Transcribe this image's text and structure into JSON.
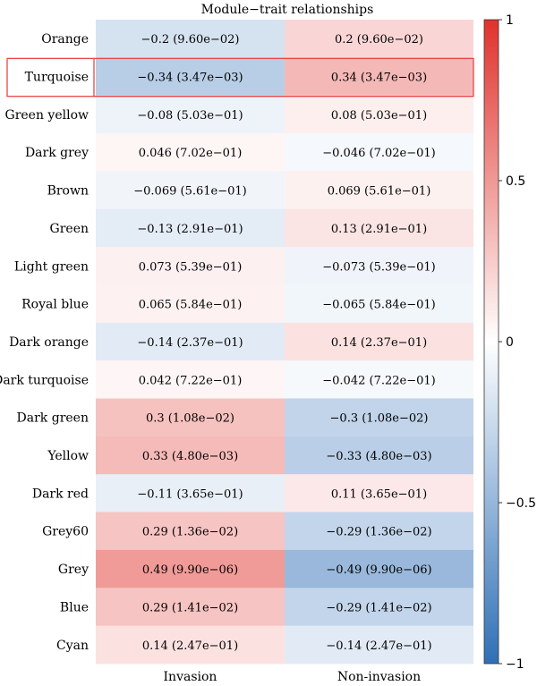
{
  "chart_data": {
    "type": "heatmap",
    "title": "Module−trait relationships",
    "columns": [
      "Invasion",
      "Non-invasion"
    ],
    "rows": [
      {
        "name": "Orange",
        "values": [
          -0.2,
          0.2
        ],
        "labels": [
          "−0.2 (9.60e−02)",
          "0.2 (9.60e−02)"
        ]
      },
      {
        "name": "Turquoise",
        "values": [
          -0.34,
          0.34
        ],
        "labels": [
          "−0.34 (3.47e−03)",
          "0.34 (3.47e−03)"
        ]
      },
      {
        "name": "Green yellow",
        "values": [
          -0.08,
          0.08
        ],
        "labels": [
          "−0.08 (5.03e−01)",
          "0.08 (5.03e−01)"
        ]
      },
      {
        "name": "Dark grey",
        "values": [
          0.046,
          -0.046
        ],
        "labels": [
          "0.046 (7.02e−01)",
          "−0.046 (7.02e−01)"
        ]
      },
      {
        "name": "Brown",
        "values": [
          -0.069,
          0.069
        ],
        "labels": [
          "−0.069 (5.61e−01)",
          "0.069 (5.61e−01)"
        ]
      },
      {
        "name": "Green",
        "values": [
          -0.13,
          0.13
        ],
        "labels": [
          "−0.13 (2.91e−01)",
          "0.13 (2.91e−01)"
        ]
      },
      {
        "name": "Light green",
        "values": [
          0.073,
          -0.073
        ],
        "labels": [
          "0.073 (5.39e−01)",
          "−0.073 (5.39e−01)"
        ]
      },
      {
        "name": "Royal blue",
        "values": [
          0.065,
          -0.065
        ],
        "labels": [
          "0.065 (5.84e−01)",
          "−0.065 (5.84e−01)"
        ]
      },
      {
        "name": "Dark orange",
        "values": [
          -0.14,
          0.14
        ],
        "labels": [
          "−0.14 (2.37e−01)",
          "0.14 (2.37e−01)"
        ]
      },
      {
        "name": "Dark turquoise",
        "values": [
          0.042,
          -0.042
        ],
        "labels": [
          "0.042 (7.22e−01)",
          "−0.042 (7.22e−01)"
        ]
      },
      {
        "name": "Dark green",
        "values": [
          0.3,
          -0.3
        ],
        "labels": [
          "0.3 (1.08e−02)",
          "−0.3 (1.08e−02)"
        ]
      },
      {
        "name": "Yellow",
        "values": [
          0.33,
          -0.33
        ],
        "labels": [
          "0.33 (4.80e−03)",
          "−0.33 (4.80e−03)"
        ]
      },
      {
        "name": "Dark red",
        "values": [
          -0.11,
          0.11
        ],
        "labels": [
          "−0.11 (3.65e−01)",
          "0.11 (3.65e−01)"
        ]
      },
      {
        "name": "Grey60",
        "values": [
          0.29,
          -0.29
        ],
        "labels": [
          "0.29 (1.36e−02)",
          "−0.29 (1.36e−02)"
        ]
      },
      {
        "name": "Grey",
        "values": [
          0.49,
          -0.49
        ],
        "labels": [
          "0.49 (9.90e−06)",
          "−0.49 (9.90e−06)"
        ]
      },
      {
        "name": "Blue",
        "values": [
          0.29,
          -0.29
        ],
        "labels": [
          "0.29 (1.41e−02)",
          "−0.29 (1.41e−02)"
        ]
      },
      {
        "name": "Cyan",
        "values": [
          0.14,
          -0.14
        ],
        "labels": [
          "0.14 (2.47e−01)",
          "−0.14 (2.47e−01)"
        ]
      }
    ],
    "highlighted_row": "Turquoise",
    "highlight_color": "#e8464a",
    "colorbar": {
      "range": [
        -1,
        1
      ],
      "ticks": [
        1,
        0.5,
        0,
        -0.5,
        -1
      ],
      "tick_labels": [
        "1",
        "0.5",
        "0",
        "−0.5",
        "−1"
      ],
      "low_color": "#2f6fb6",
      "mid_color": "#ffffff",
      "high_color": "#e0322c"
    }
  }
}
